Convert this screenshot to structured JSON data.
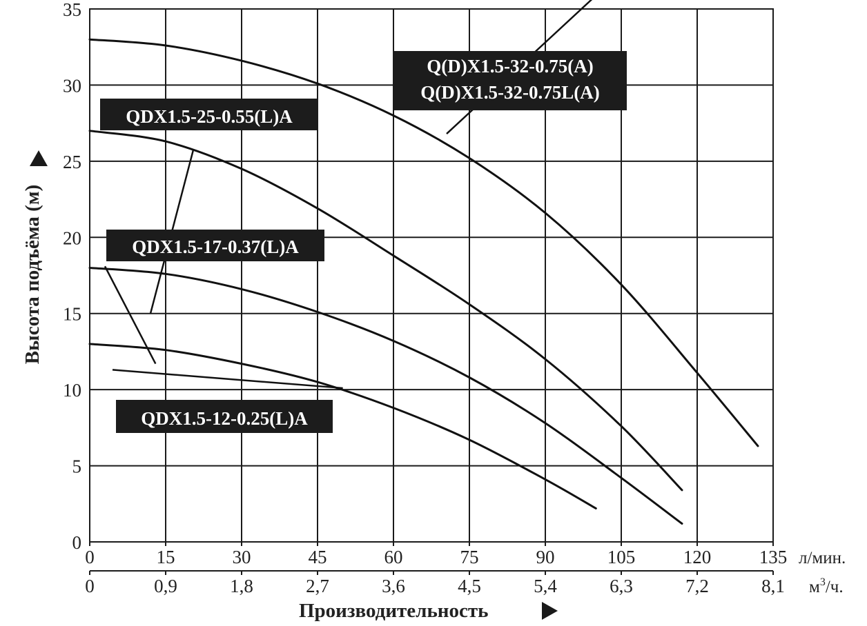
{
  "chart_data": {
    "type": "line",
    "ylabel": "Высота подъёма (м)",
    "xlabel": "Производительность",
    "x_units": {
      "primary": "л/мин.",
      "secondary_base": "м",
      "secondary_exp": "3",
      "secondary_tail": "/ч."
    },
    "xlim": [
      0,
      135
    ],
    "ylim": [
      0,
      35
    ],
    "x_ticks": [
      "0",
      "15",
      "30",
      "45",
      "60",
      "75",
      "90",
      "105",
      "120",
      "135"
    ],
    "x_ticks_secondary": [
      "0",
      "0,9",
      "1,8",
      "2,7",
      "3,6",
      "4,5",
      "5,4",
      "6,3",
      "7,2",
      "8,1"
    ],
    "y_ticks": [
      "0",
      "5",
      "10",
      "15",
      "20",
      "25",
      "30",
      "35"
    ],
    "grid": true,
    "series": [
      {
        "name": "QDX1.5-12-0.25(L)A",
        "x": [
          0,
          15,
          30,
          45,
          60,
          75,
          90,
          100
        ],
        "y": [
          13,
          12.6,
          11.7,
          10.5,
          8.8,
          6.7,
          4.1,
          2.2
        ]
      },
      {
        "name": "QDX1.5-17-0.37(L)A",
        "x": [
          0,
          15,
          30,
          45,
          60,
          75,
          90,
          105,
          117
        ],
        "y": [
          18,
          17.6,
          16.6,
          15.1,
          13.2,
          10.8,
          7.8,
          4.2,
          1.2
        ]
      },
      {
        "name": "QDX1.5-25-0.55(L)A",
        "x": [
          0,
          15,
          30,
          45,
          60,
          75,
          90,
          105,
          117
        ],
        "y": [
          27,
          26.3,
          24.5,
          21.9,
          18.8,
          15.6,
          12,
          7.6,
          3.4
        ]
      },
      {
        "name": "Q(D)X1.5-32-0.75(A)",
        "name_line2": "Q(D)X1.5-32-0.75L(A)",
        "x": [
          0,
          15,
          30,
          45,
          60,
          75,
          90,
          105,
          120,
          132
        ],
        "y": [
          33,
          32.6,
          31.6,
          30.1,
          28,
          25.2,
          21.6,
          16.9,
          11.1,
          6.3
        ]
      }
    ]
  }
}
